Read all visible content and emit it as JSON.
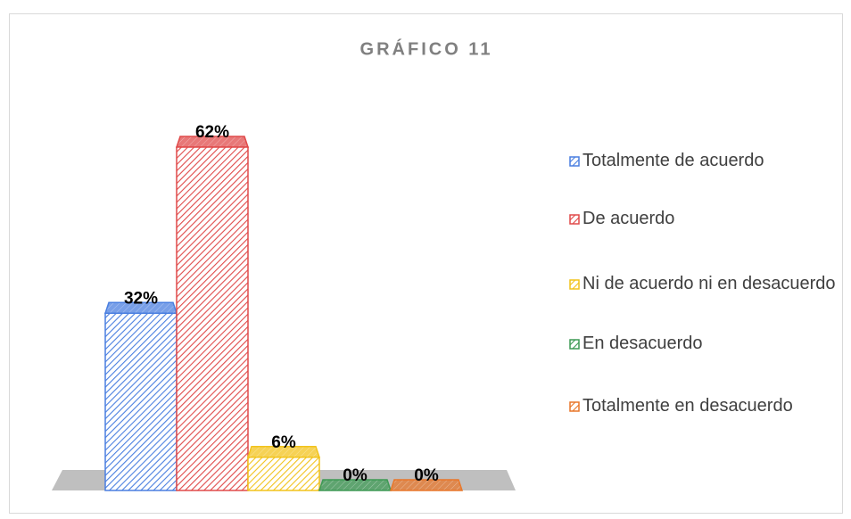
{
  "chart_data": {
    "type": "bar3d",
    "title": "GRÁFICO 11",
    "categories": [
      null
    ],
    "series": [
      {
        "name": "Totalmente de acuerdo",
        "color": "#4a7fe0",
        "values": [
          32
        ],
        "value_labels": [
          "32%"
        ]
      },
      {
        "name": "De acuerdo",
        "color": "#e04a4a",
        "values": [
          62
        ],
        "value_labels": [
          "62%"
        ]
      },
      {
        "name": "Ni de acuerdo ni en desacuerdo",
        "color": "#f2c31c",
        "values": [
          6
        ],
        "value_labels": [
          "6%"
        ]
      },
      {
        "name": "En desacuerdo",
        "color": "#3f9a55",
        "values": [
          0
        ],
        "value_labels": [
          "0%"
        ]
      },
      {
        "name": "Totalmente en desacuerdo",
        "color": "#e8772a",
        "values": [
          0
        ],
        "value_labels": [
          "0%"
        ]
      }
    ],
    "legend": "right"
  }
}
